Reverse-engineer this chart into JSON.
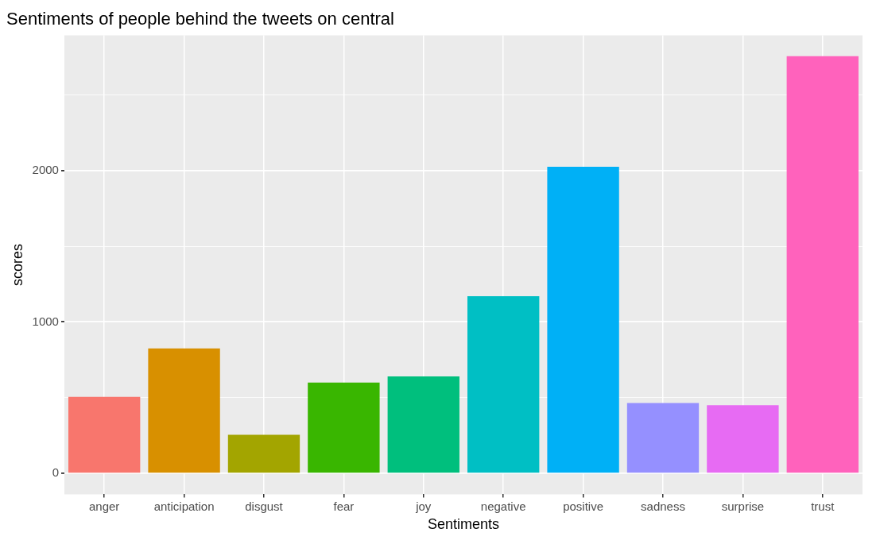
{
  "chart_data": {
    "type": "bar",
    "title": "Sentiments of people behind the tweets on central",
    "xlabel": "Sentiments",
    "ylabel": "scores",
    "categories": [
      "anger",
      "anticipation",
      "disgust",
      "fear",
      "joy",
      "negative",
      "positive",
      "sadness",
      "surprise",
      "trust"
    ],
    "values": [
      505,
      825,
      255,
      600,
      640,
      1170,
      2025,
      465,
      450,
      2755
    ],
    "colors": [
      "#f8766d",
      "#d89000",
      "#a3a500",
      "#39b600",
      "#00bf7d",
      "#00bfc4",
      "#00b0f6",
      "#9590ff",
      "#e76bf3",
      "#ff62bc"
    ],
    "ylim": [
      -138,
      2893
    ],
    "yticks": [
      0,
      {
        "value": 500,
        "label": null
      },
      1000,
      {
        "value": 1500,
        "label": null
      },
      2000,
      {
        "value": 2500,
        "label": null
      }
    ],
    "grid": true,
    "legend": false
  }
}
